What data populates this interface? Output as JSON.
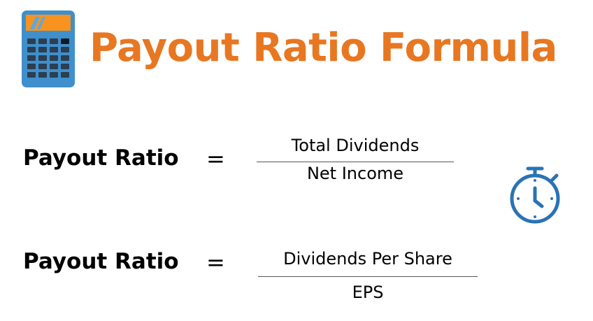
{
  "title": "Payout Ratio Formula",
  "colors": {
    "title": "#e87722",
    "text": "#000000",
    "icon_blue": "#2a73b4",
    "calc_body": "#3f8fcc",
    "calc_screen": "#f7931e",
    "calc_keys": "#2c3e50"
  },
  "icons": {
    "calculator": "calculator-icon",
    "stopwatch": "stopwatch-icon"
  },
  "formulas": [
    {
      "lhs": "Payout Ratio",
      "equals": "=",
      "numerator": "Total Dividends",
      "denominator": "Net Income"
    },
    {
      "lhs": "Payout Ratio",
      "equals": "=",
      "numerator": "Dividends Per Share",
      "denominator": "EPS"
    }
  ]
}
